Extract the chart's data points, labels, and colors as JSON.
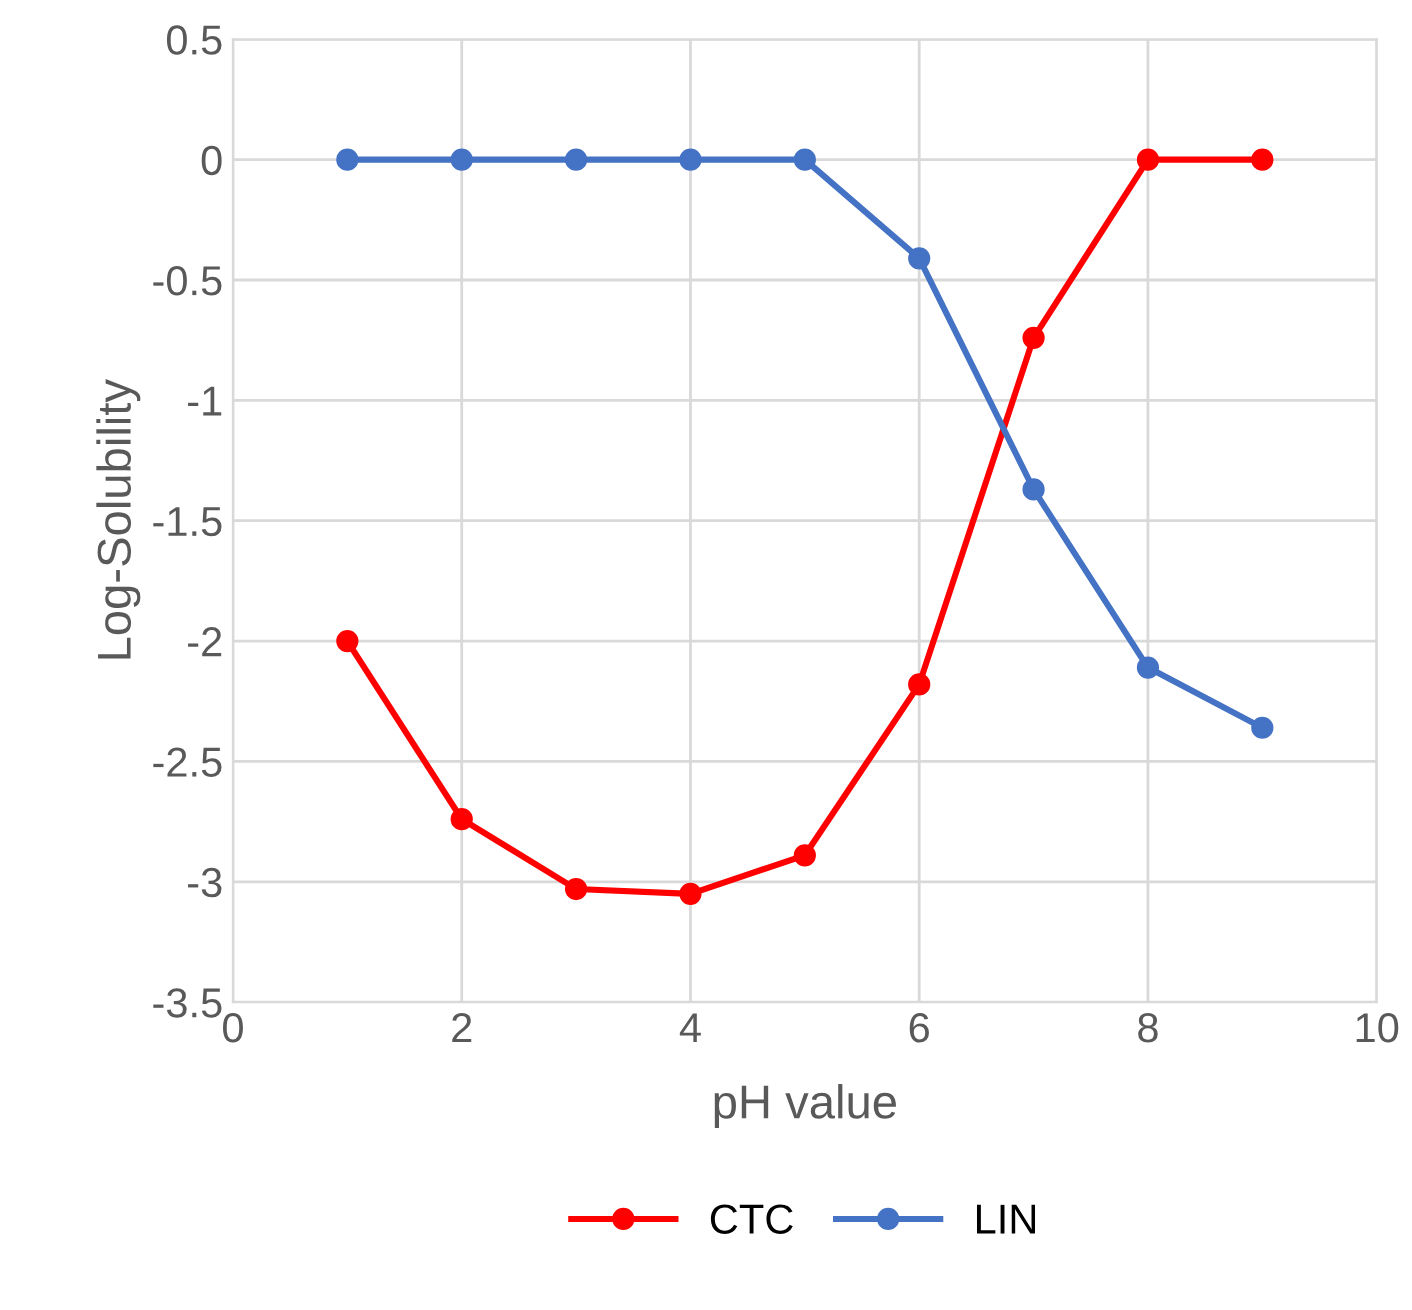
{
  "chart_data": {
    "type": "line",
    "xlabel": "pH value",
    "ylabel": "Log-Solubility",
    "x": [
      1,
      2,
      3,
      4,
      5,
      6,
      7,
      8,
      9
    ],
    "series": [
      {
        "name": "CTC",
        "color": "#ff0000",
        "values": [
          -2.0,
          -2.74,
          -3.03,
          -3.05,
          -2.89,
          -2.18,
          -0.74,
          0,
          0
        ]
      },
      {
        "name": "LIN",
        "color": "#4472c4",
        "values": [
          0,
          0,
          0,
          0,
          0,
          -0.41,
          -1.37,
          -2.11,
          -2.36
        ]
      }
    ],
    "xlim": [
      0,
      10
    ],
    "xticks": [
      0,
      2,
      4,
      6,
      8,
      10
    ],
    "ylim": [
      -3.5,
      0.5
    ],
    "yticks": [
      -3.5,
      -3,
      -2.5,
      -2,
      -1.5,
      -1,
      -0.5,
      0,
      0.5
    ],
    "grid": true,
    "legend": "bottom",
    "marker": "circle",
    "line_style": "solid"
  }
}
